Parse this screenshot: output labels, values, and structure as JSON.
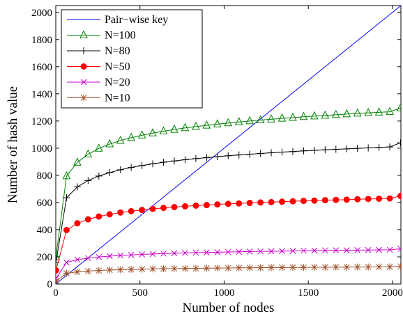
{
  "chart_data": {
    "type": "line",
    "title": "",
    "xlabel": "Number of nodes",
    "ylabel": "Number of hash value",
    "xlim": [
      0,
      2050
    ],
    "ylim": [
      0,
      2050
    ],
    "xticks": [
      0,
      500,
      1000,
      1500,
      2000
    ],
    "yticks": [
      0,
      200,
      400,
      600,
      800,
      1000,
      1200,
      1400,
      1600,
      1800,
      2000
    ],
    "grid": false,
    "legend_position": "top-left",
    "series": [
      {
        "name": "Pair−wise key",
        "color": "#0000ff",
        "marker": "none",
        "formula": "y = x",
        "x": [
          0,
          2050
        ],
        "y": [
          0,
          2050
        ]
      },
      {
        "name": "N=100",
        "color": "#008000",
        "marker": "triangle",
        "x": [
          1,
          64,
          128,
          192,
          256,
          320,
          384,
          448,
          512,
          576,
          640,
          704,
          768,
          832,
          896,
          960,
          1024,
          1088,
          1152,
          1216,
          1280,
          1344,
          1408,
          1472,
          1536,
          1600,
          1664,
          1728,
          1792,
          1856,
          1920,
          1984,
          2048
        ],
        "y": [
          200,
          795,
          895,
          955,
          998,
          1030,
          1056,
          1077,
          1095,
          1111,
          1125,
          1137,
          1149,
          1159,
          1168,
          1177,
          1185,
          1193,
          1200,
          1207,
          1213,
          1219,
          1225,
          1231,
          1236,
          1241,
          1246,
          1251,
          1256,
          1260,
          1264,
          1268,
          1296
        ]
      },
      {
        "name": "N=80",
        "color": "#000000",
        "marker": "plus",
        "x": [
          1,
          64,
          128,
          192,
          256,
          320,
          384,
          448,
          512,
          576,
          640,
          704,
          768,
          832,
          896,
          960,
          1024,
          1088,
          1152,
          1216,
          1280,
          1344,
          1408,
          1472,
          1536,
          1600,
          1664,
          1728,
          1792,
          1856,
          1920,
          1984,
          2048
        ],
        "y": [
          160,
          635,
          715,
          762,
          795,
          820,
          841,
          858,
          872,
          885,
          896,
          906,
          915,
          923,
          930,
          937,
          944,
          950,
          955,
          961,
          966,
          971,
          975,
          980,
          984,
          988,
          992,
          995,
          999,
          1002,
          1006,
          1009,
          1040
        ]
      },
      {
        "name": "N=50",
        "color": "#ff0000",
        "marker": "circle",
        "x": [
          1,
          64,
          128,
          192,
          256,
          320,
          384,
          448,
          512,
          576,
          640,
          704,
          768,
          832,
          896,
          960,
          1024,
          1088,
          1152,
          1216,
          1280,
          1344,
          1408,
          1472,
          1536,
          1600,
          1664,
          1728,
          1792,
          1856,
          1920,
          1984,
          2048
        ],
        "y": [
          100,
          397,
          447,
          476,
          497,
          513,
          526,
          536,
          545,
          553,
          560,
          566,
          572,
          577,
          581,
          586,
          590,
          593,
          597,
          600,
          603,
          606,
          609,
          612,
          614,
          617,
          619,
          621,
          624,
          626,
          628,
          630,
          648
        ]
      },
      {
        "name": "N=20",
        "color": "#cc00cc",
        "marker": "cross",
        "x": [
          1,
          64,
          128,
          192,
          256,
          320,
          384,
          448,
          512,
          576,
          640,
          704,
          768,
          832,
          896,
          960,
          1024,
          1088,
          1152,
          1216,
          1280,
          1344,
          1408,
          1472,
          1536,
          1600,
          1664,
          1728,
          1792,
          1856,
          1920,
          1984,
          2048
        ],
        "y": [
          40,
          159,
          179,
          190,
          199,
          205,
          210,
          214,
          218,
          221,
          224,
          226,
          229,
          231,
          232,
          234,
          236,
          237,
          239,
          240,
          241,
          242,
          243,
          245,
          246,
          247,
          248,
          248,
          249,
          250,
          251,
          252,
          259
        ]
      },
      {
        "name": "N=10",
        "color": "#a0522d",
        "marker": "star",
        "x": [
          1,
          64,
          128,
          192,
          256,
          320,
          384,
          448,
          512,
          576,
          640,
          704,
          768,
          832,
          896,
          960,
          1024,
          1088,
          1152,
          1216,
          1280,
          1344,
          1408,
          1472,
          1536,
          1600,
          1664,
          1728,
          1792,
          1856,
          1920,
          1984,
          2048
        ],
        "y": [
          20,
          79,
          89,
          95,
          99,
          103,
          105,
          107,
          109,
          111,
          112,
          113,
          114,
          115,
          116,
          117,
          118,
          119,
          119,
          120,
          121,
          121,
          122,
          122,
          123,
          123,
          124,
          124,
          125,
          125,
          126,
          126,
          130
        ]
      }
    ]
  }
}
